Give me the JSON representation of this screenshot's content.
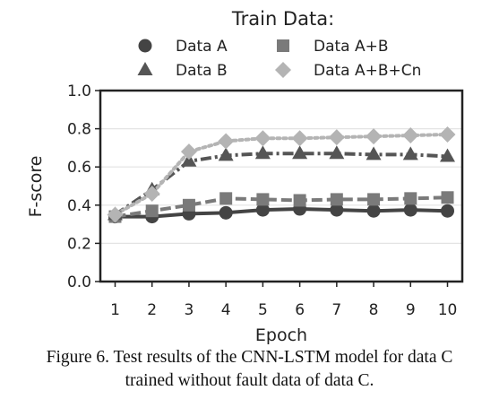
{
  "chart_data": {
    "type": "line",
    "x": [
      1,
      2,
      3,
      4,
      5,
      6,
      7,
      8,
      9,
      10
    ],
    "series": [
      {
        "name": "Data A",
        "values": [
          0.34,
          0.34,
          0.355,
          0.36,
          0.375,
          0.38,
          0.375,
          0.37,
          0.375,
          0.37
        ],
        "color": "#444444",
        "marker": "circle",
        "dash": "solid"
      },
      {
        "name": "Data A+B",
        "values": [
          0.34,
          0.37,
          0.4,
          0.435,
          0.43,
          0.425,
          0.43,
          0.43,
          0.435,
          0.44
        ],
        "color": "#7a7a7a",
        "marker": "square",
        "dash": "dashed"
      },
      {
        "name": "Data B",
        "values": [
          0.35,
          0.48,
          0.63,
          0.66,
          0.67,
          0.67,
          0.67,
          0.665,
          0.665,
          0.655
        ],
        "color": "#555555",
        "marker": "triangle",
        "dash": "dashdot"
      },
      {
        "name": "Data A+B+Cn",
        "values": [
          0.35,
          0.46,
          0.68,
          0.735,
          0.75,
          0.75,
          0.755,
          0.76,
          0.765,
          0.77
        ],
        "color": "#b4b4b4",
        "marker": "diamond",
        "dash": "dotted"
      }
    ],
    "xlabel": "Epoch",
    "ylabel": "F-score",
    "xlim": [
      0.6,
      10.4
    ],
    "ylim": [
      0.0,
      1.0
    ],
    "xticks": [
      "1",
      "2",
      "3",
      "4",
      "5",
      "6",
      "7",
      "8",
      "9",
      "10"
    ],
    "yticks": [
      "0.0",
      "0.2",
      "0.4",
      "0.6",
      "0.8",
      "1.0"
    ],
    "grid": "horizontal",
    "legend": {
      "title": "Train Data:",
      "placement": "top",
      "entries": [
        "Data A",
        "Data A+B",
        "Data B",
        "Data A+B+Cn"
      ]
    }
  },
  "caption": {
    "line1": "Figure 6. Test results of the CNN-LSTM model for data C",
    "line2": "trained without fault data of data C."
  }
}
